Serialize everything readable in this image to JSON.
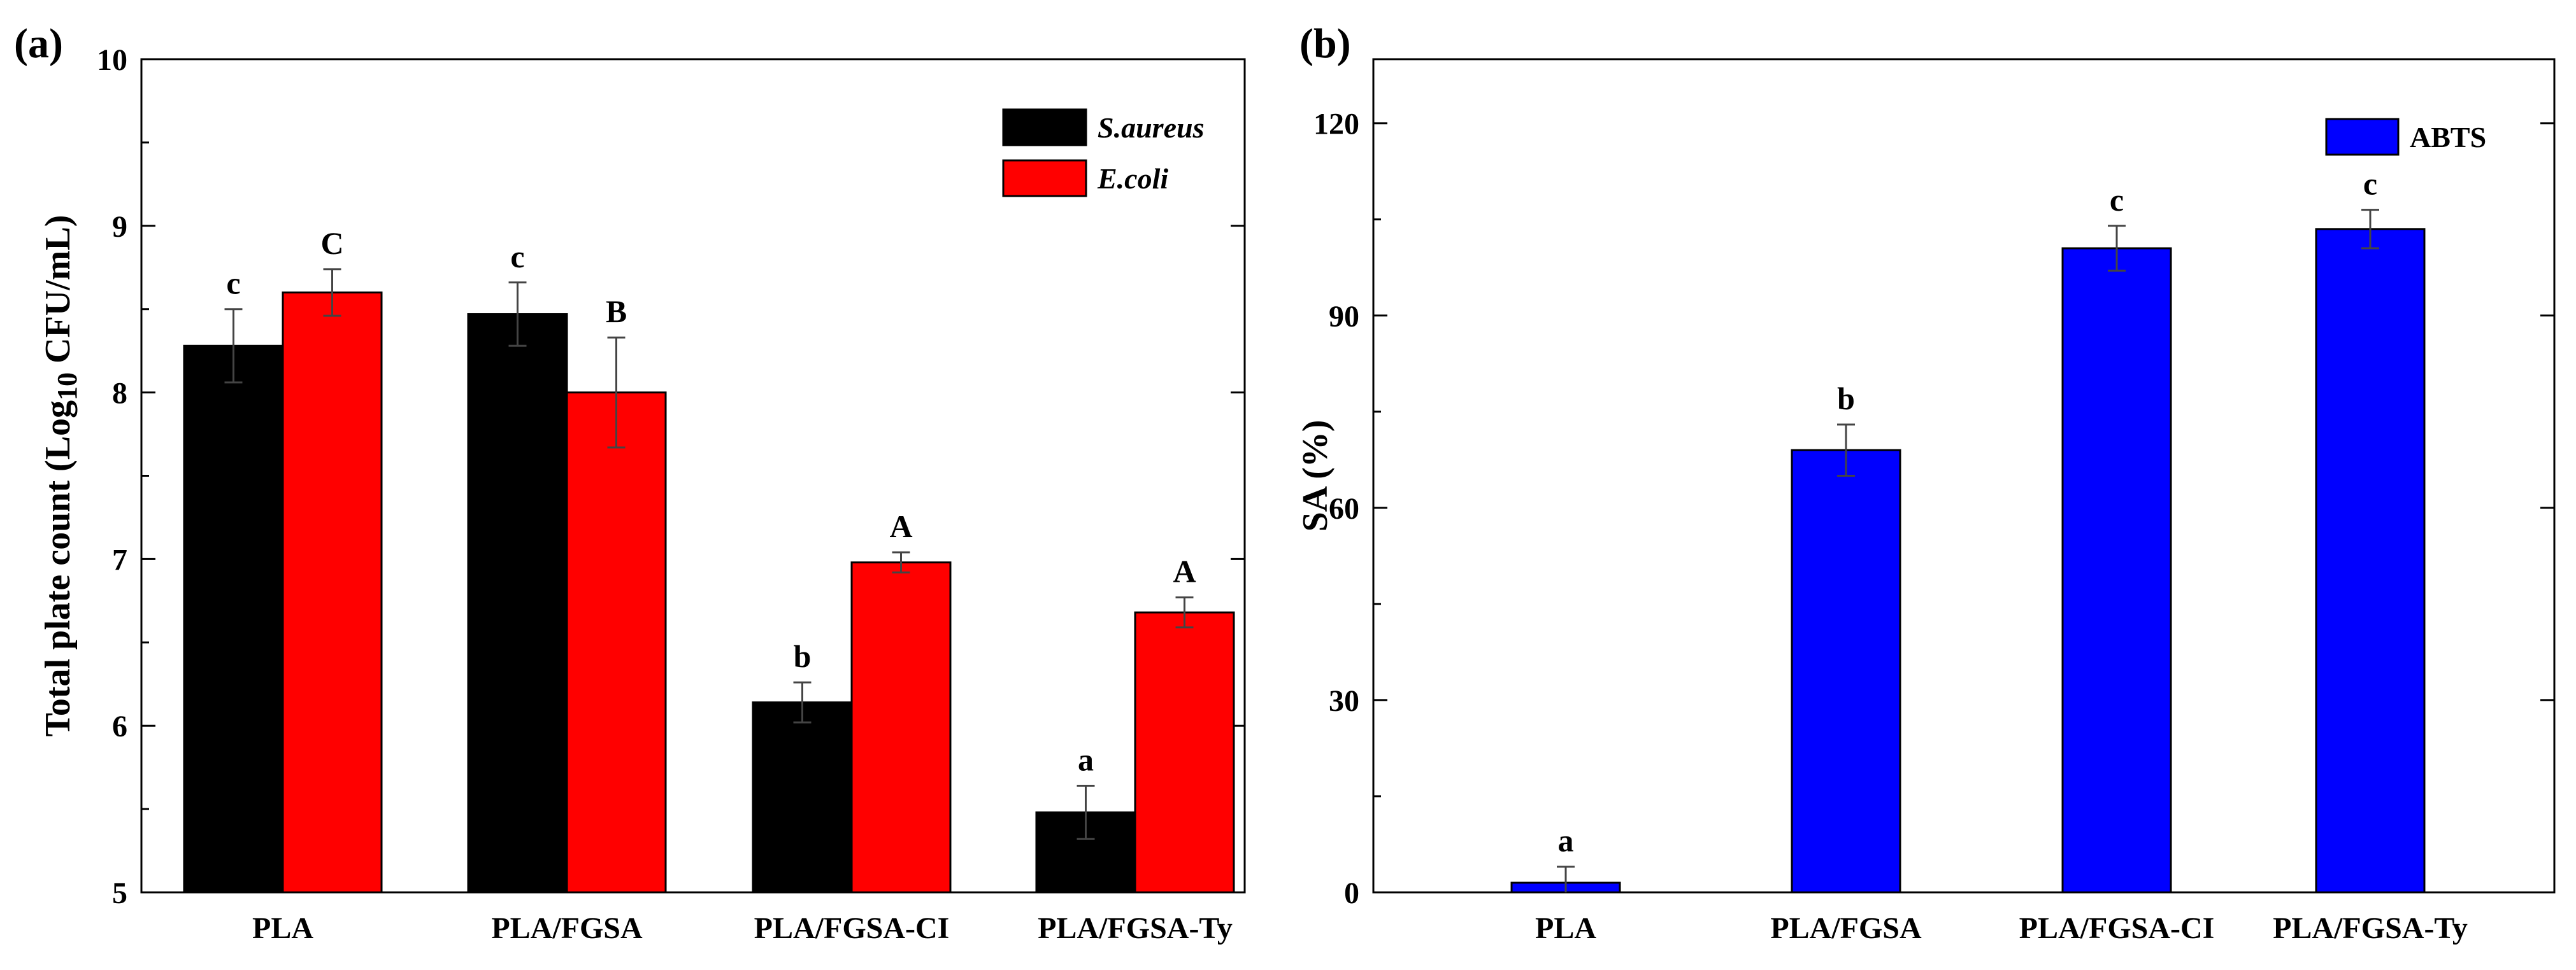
{
  "chart_data": [
    {
      "type": "bar",
      "panel_label": "(a)",
      "categories": [
        "PLA",
        "PLA/FGSA",
        "PLA/FGSA-CI",
        "PLA/FGSA-Ty"
      ],
      "ylabel_parts": [
        "Total plate count (Log",
        "10",
        " CFU/mL)"
      ],
      "ylim": [
        5,
        10
      ],
      "yticks": [
        5,
        6,
        7,
        8,
        9,
        10
      ],
      "legend_position": "top-right",
      "series": [
        {
          "name": "S.aureus",
          "italic": true,
          "color": "#000000",
          "values": [
            8.28,
            8.47,
            6.14,
            5.48
          ],
          "errors": [
            0.22,
            0.19,
            0.12,
            0.16
          ],
          "letters": [
            "c",
            "c",
            "b",
            "a"
          ]
        },
        {
          "name": "E.coli",
          "italic": true,
          "color": "#ff0000",
          "values": [
            8.6,
            8.0,
            6.98,
            6.68
          ],
          "errors": [
            0.14,
            0.33,
            0.06,
            0.09
          ],
          "letters": [
            "C",
            "B",
            "A",
            "A"
          ]
        }
      ]
    },
    {
      "type": "bar",
      "panel_label": "(b)",
      "categories": [
        "PLA",
        "PLA/FGSA",
        "PLA/FGSA-CI",
        "PLA/FGSA-Ty"
      ],
      "ylabel_parts": [
        "SA (%)"
      ],
      "ylim": [
        0,
        130
      ],
      "yticks": [
        0,
        30,
        60,
        90,
        120
      ],
      "legend_position": "top-right",
      "series": [
        {
          "name": "ABTS",
          "italic": false,
          "color": "#0000ff",
          "values": [
            1.5,
            69.0,
            100.5,
            103.5
          ],
          "errors": [
            2.5,
            4.0,
            3.5,
            3.0
          ],
          "letters": [
            "a",
            "b",
            "c",
            "c"
          ]
        }
      ]
    }
  ]
}
